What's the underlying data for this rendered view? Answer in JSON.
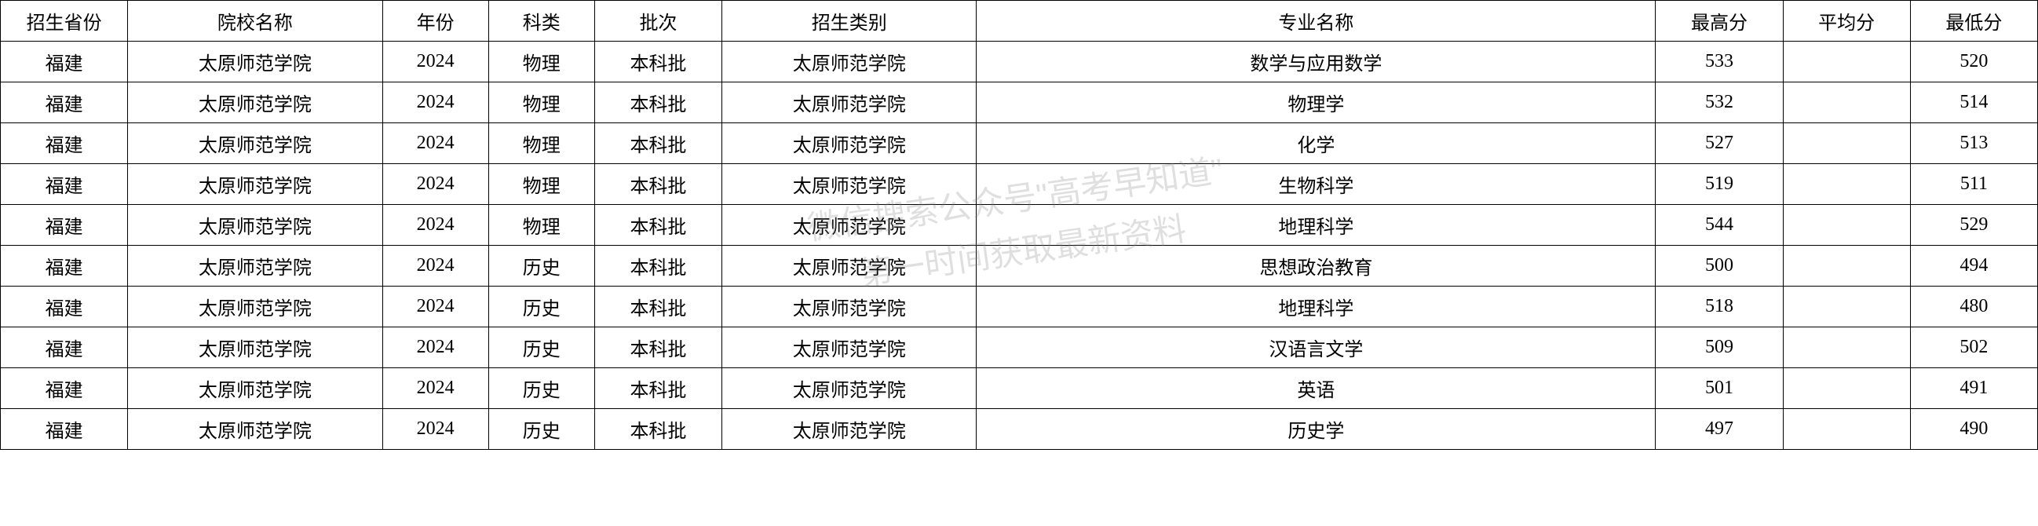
{
  "table": {
    "columns": [
      {
        "key": "province",
        "label": "招生省份",
        "class": "col-province"
      },
      {
        "key": "school",
        "label": "院校名称",
        "class": "col-school"
      },
      {
        "key": "year",
        "label": "年份",
        "class": "col-year"
      },
      {
        "key": "subject",
        "label": "科类",
        "class": "col-subject"
      },
      {
        "key": "batch",
        "label": "批次",
        "class": "col-batch"
      },
      {
        "key": "category",
        "label": "招生类别",
        "class": "col-category"
      },
      {
        "key": "major",
        "label": "专业名称",
        "class": "col-major"
      },
      {
        "key": "high",
        "label": "最高分",
        "class": "col-high"
      },
      {
        "key": "avg",
        "label": "平均分",
        "class": "col-avg"
      },
      {
        "key": "low",
        "label": "最低分",
        "class": "col-low"
      }
    ],
    "rows": [
      [
        "福建",
        "太原师范学院",
        "2024",
        "物理",
        "本科批",
        "太原师范学院",
        "数学与应用数学",
        "533",
        "",
        "520"
      ],
      [
        "福建",
        "太原师范学院",
        "2024",
        "物理",
        "本科批",
        "太原师范学院",
        "物理学",
        "532",
        "",
        "514"
      ],
      [
        "福建",
        "太原师范学院",
        "2024",
        "物理",
        "本科批",
        "太原师范学院",
        "化学",
        "527",
        "",
        "513"
      ],
      [
        "福建",
        "太原师范学院",
        "2024",
        "物理",
        "本科批",
        "太原师范学院",
        "生物科学",
        "519",
        "",
        "511"
      ],
      [
        "福建",
        "太原师范学院",
        "2024",
        "物理",
        "本科批",
        "太原师范学院",
        "地理科学",
        "544",
        "",
        "529"
      ],
      [
        "福建",
        "太原师范学院",
        "2024",
        "历史",
        "本科批",
        "太原师范学院",
        "思想政治教育",
        "500",
        "",
        "494"
      ],
      [
        "福建",
        "太原师范学院",
        "2024",
        "历史",
        "本科批",
        "太原师范学院",
        "地理科学",
        "518",
        "",
        "480"
      ],
      [
        "福建",
        "太原师范学院",
        "2024",
        "历史",
        "本科批",
        "太原师范学院",
        "汉语言文学",
        "509",
        "",
        "502"
      ],
      [
        "福建",
        "太原师范学院",
        "2024",
        "历史",
        "本科批",
        "太原师范学院",
        "英语",
        "501",
        "",
        "491"
      ],
      [
        "福建",
        "太原师范学院",
        "2024",
        "历史",
        "本科批",
        "太原师范学院",
        "历史学",
        "497",
        "",
        "490"
      ]
    ],
    "border_color": "#000000",
    "background_color": "#ffffff",
    "font_size": 24,
    "cell_padding": 8
  },
  "watermark": {
    "line1": "微信搜索公众号\"高考早知道\"",
    "line2": "第一时间获取最新资料",
    "color": "rgba(128, 128, 128, 0.25)",
    "font_size": 42,
    "rotation": -8
  }
}
